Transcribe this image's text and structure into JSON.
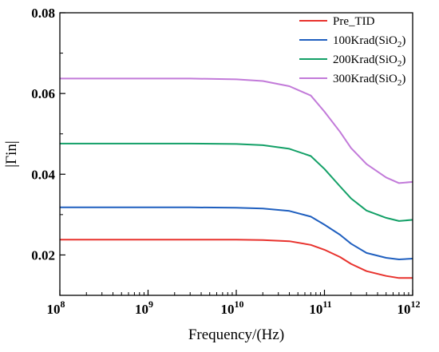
{
  "chart_data": {
    "type": "line",
    "title": "",
    "xlabel": "Frequency/(Hz)",
    "ylabel": "|Γin|",
    "xscale": "log",
    "xlim": [
      100000000,
      1000000000000
    ],
    "ylim": [
      0.01,
      0.08
    ],
    "x_ticks": [
      {
        "value": 100000000,
        "base": "10",
        "exp": "8"
      },
      {
        "value": 1000000000,
        "base": "10",
        "exp": "9"
      },
      {
        "value": 10000000000,
        "base": "10",
        "exp": "10"
      },
      {
        "value": 100000000000,
        "base": "10",
        "exp": "11"
      },
      {
        "value": 1000000000000,
        "base": "10",
        "exp": "12"
      }
    ],
    "y_ticks": [
      {
        "value": 0.02,
        "label": "0.02"
      },
      {
        "value": 0.04,
        "label": "0.04"
      },
      {
        "value": 0.06,
        "label": "0.06"
      },
      {
        "value": 0.08,
        "label": "0.08"
      }
    ],
    "grid": false,
    "legend_position": "top-right",
    "x": [
      100000000,
      1000000000,
      3000000000,
      10000000000,
      20000000000,
      40000000000,
      70000000000,
      100000000000,
      150000000000,
      200000000000,
      300000000000,
      500000000000,
      700000000000,
      1000000000000
    ],
    "series": [
      {
        "name": "Pre_TID",
        "legend_main": "Pre_TID",
        "legend_sub": "",
        "legend_tail": "",
        "color": "#e8322d",
        "values": [
          0.0238,
          0.0238,
          0.0238,
          0.0238,
          0.0237,
          0.0234,
          0.0225,
          0.0213,
          0.0195,
          0.0178,
          0.016,
          0.0148,
          0.0143,
          0.0143
        ]
      },
      {
        "name": "100Krad(SiO2)",
        "legend_main": "100Krad(SiO",
        "legend_sub": "2",
        "legend_tail": ")",
        "color": "#1f5fbf",
        "values": [
          0.0318,
          0.0318,
          0.0318,
          0.0317,
          0.0315,
          0.0309,
          0.0295,
          0.0275,
          0.025,
          0.0228,
          0.0205,
          0.0193,
          0.0189,
          0.0191
        ]
      },
      {
        "name": "200Krad(SiO2)",
        "legend_main": "200Krad(SiO",
        "legend_sub": "2",
        "legend_tail": ")",
        "color": "#13a067",
        "values": [
          0.0476,
          0.0476,
          0.0476,
          0.0475,
          0.0472,
          0.0463,
          0.0445,
          0.0413,
          0.037,
          0.034,
          0.031,
          0.0292,
          0.0284,
          0.0287
        ]
      },
      {
        "name": "300Krad(SiO2)",
        "legend_main": "300Krad(SiO",
        "legend_sub": "2",
        "legend_tail": ")",
        "color": "#c27ad9",
        "values": [
          0.0637,
          0.0637,
          0.0637,
          0.0635,
          0.0631,
          0.0618,
          0.0595,
          0.0555,
          0.0505,
          0.0465,
          0.0425,
          0.0392,
          0.0378,
          0.0381
        ]
      }
    ]
  }
}
